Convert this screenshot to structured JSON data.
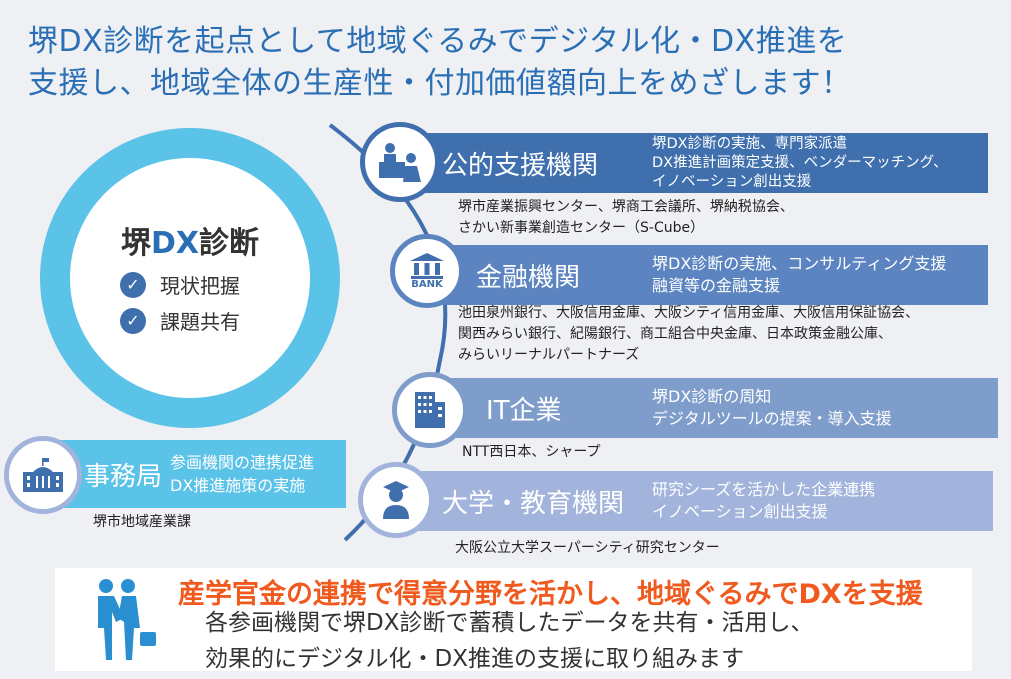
{
  "title": {
    "line1": "堺DX診断を起点として地域ぐるみでデジタル化・DX推進を",
    "line2": "支援し、地域全体の生産性・付加価値額向上をめざします！"
  },
  "center": {
    "logo_prefix": "堺",
    "logo_dx": "DX",
    "logo_suffix": "診断",
    "checks": [
      "現状把握",
      "課題共有"
    ]
  },
  "orgs": [
    {
      "name": "公的支援機関",
      "icon": "presentation-icon",
      "desc": [
        "堺DX診断の実施、専門家派遣",
        "DX推進計画策定支援、ベンダーマッチング、",
        "イノベーション創出支援"
      ],
      "members": [
        "堺市産業振興センター、堺商工会議所、堺納税協会、",
        "さかい新事業創造センター（S-Cube）"
      ],
      "color": "#3f6fad"
    },
    {
      "name": "金融機関",
      "icon": "bank-icon",
      "icon_label": "BANK",
      "desc": [
        "堺DX診断の実施、コンサルティング支援",
        "融資等の金融支援"
      ],
      "members": [
        "池田泉州銀行、大阪信用金庫、大阪シティ信用金庫、大阪信用保証協会、",
        "関西みらい銀行、紀陽銀行、商工組合中央金庫、日本政策金融公庫、",
        "みらいリーナルパートナーズ"
      ],
      "color": "#5b84c0"
    },
    {
      "name": "IT企業",
      "icon": "office-building-icon",
      "desc": [
        "堺DX診断の周知",
        "デジタルツールの提案・導入支援"
      ],
      "members": [
        "NTT西日本、シャープ"
      ],
      "color": "#7f9dcb"
    },
    {
      "name": "大学・教育機関",
      "icon": "graduate-icon",
      "desc": [
        "研究シーズを活かした企業連携",
        "イノベーション創出支援"
      ],
      "members": [
        "大阪公立大学スーパーシティ研究センター"
      ],
      "color": "#a3b4dc"
    }
  ],
  "secretariat": {
    "name": "事務局",
    "icon": "city-hall-icon",
    "desc": [
      "参画機関の連携促進",
      "DX推進施策の実施"
    ],
    "member": "堺市地域産業課",
    "color": "#5bc3e8"
  },
  "bottom": {
    "headline": "産学官金の連携で得意分野を活かし、地域ぐるみでDXを支援",
    "lines": [
      "各参画機関で堺DX診断で蓄積したデータを共有・活用し、",
      "効果的にデジタル化・DX推進の支援に取り組みます"
    ],
    "icon": "handshake-icon",
    "headline_color": "#f05a1e"
  }
}
